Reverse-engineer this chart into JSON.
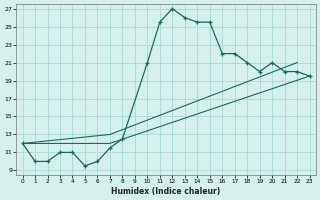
{
  "xlabel": "Humidex (Indice chaleur)",
  "bg_color": "#d4efec",
  "grid_color": "#aad8d3",
  "line_color": "#1a6b5e",
  "xlim": [
    0,
    23
  ],
  "ylim": [
    8.5,
    27.5
  ],
  "yticks": [
    9,
    11,
    13,
    15,
    17,
    19,
    21,
    23,
    25,
    27
  ],
  "xticks": [
    0,
    1,
    2,
    3,
    4,
    5,
    6,
    7,
    8,
    9,
    10,
    11,
    12,
    13,
    14,
    15,
    16,
    17,
    18,
    19,
    20,
    21,
    22,
    23
  ],
  "main_curve_x": [
    0,
    1,
    2,
    3,
    4,
    5,
    6,
    7,
    8,
    10,
    11,
    12,
    13,
    14,
    15,
    16,
    17,
    18,
    19,
    20,
    21,
    22,
    23
  ],
  "main_curve_y": [
    12,
    10,
    10,
    11,
    11,
    9.5,
    10,
    11.5,
    12.5,
    21,
    25.5,
    27,
    26,
    25.5,
    25.5,
    22,
    22,
    21,
    20,
    21,
    20,
    20,
    19.5
  ],
  "line2_x": [
    0,
    7,
    23
  ],
  "line2_y": [
    12,
    12,
    19.5
  ],
  "line3_x": [
    0,
    7,
    22
  ],
  "line3_y": [
    12,
    13,
    21
  ]
}
